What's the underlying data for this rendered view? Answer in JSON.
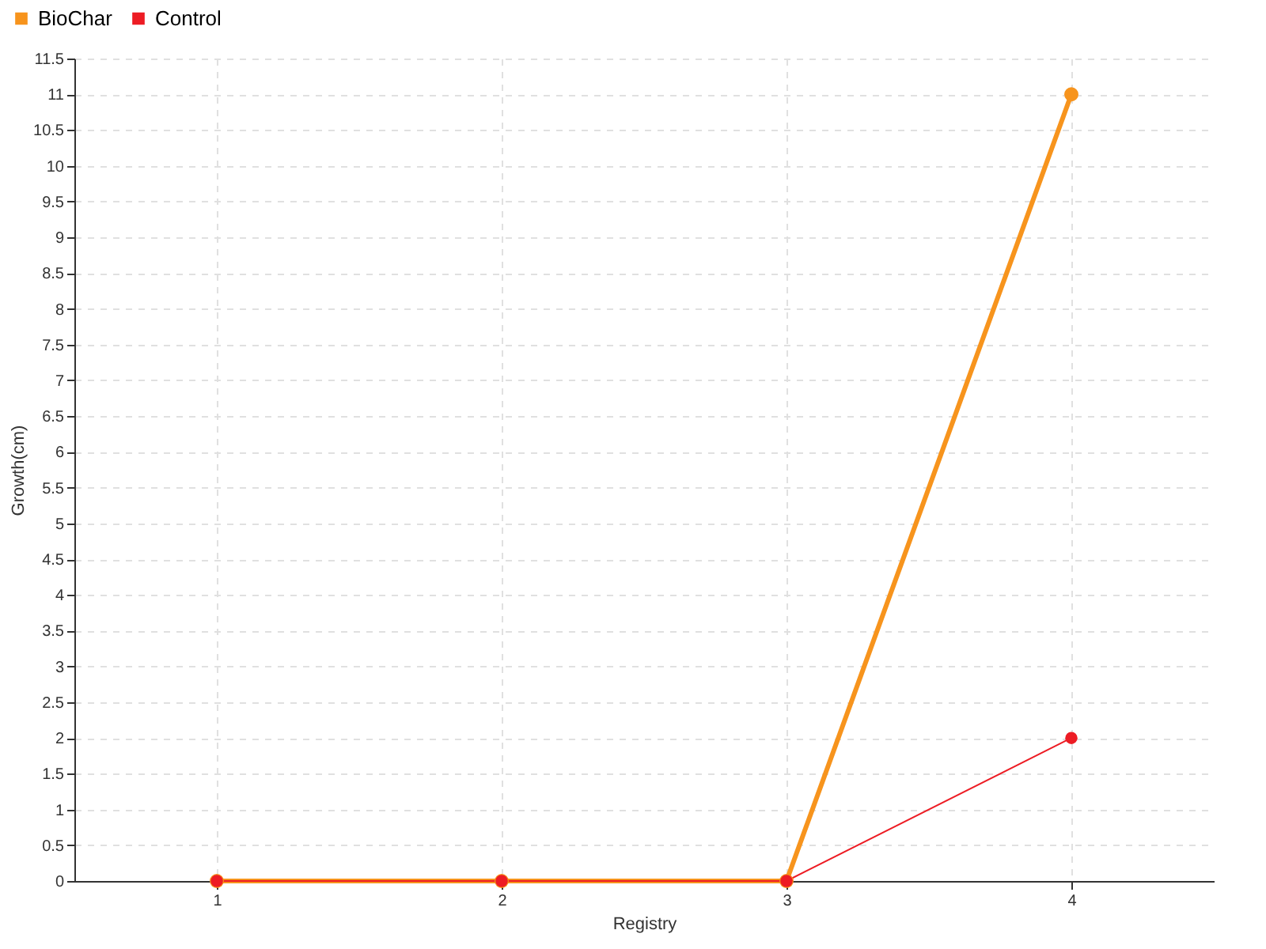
{
  "chart_data": {
    "type": "line",
    "xlabel": "Registry",
    "ylabel": "Growth(cm)",
    "x": [
      1,
      2,
      3,
      4
    ],
    "series": [
      {
        "name": "BioChar",
        "color": "#f7941d",
        "values": [
          0,
          0,
          0,
          11
        ]
      },
      {
        "name": "Control",
        "color": "#ed1c24",
        "values": [
          0,
          0,
          0,
          2
        ]
      }
    ],
    "xlim": [
      0.5,
      4.5
    ],
    "xticks": [
      1,
      2,
      3,
      4
    ],
    "ylim": [
      0,
      11.5
    ],
    "yticks": [
      0,
      0.5,
      1,
      1.5,
      2,
      2.5,
      3,
      3.5,
      4,
      4.5,
      5,
      5.5,
      6,
      6.5,
      7,
      7.5,
      8,
      8.5,
      9,
      9.5,
      10,
      10.5,
      11,
      11.5
    ],
    "grid": true,
    "legend": "top left",
    "marker": "circle",
    "line_style": "solid"
  }
}
